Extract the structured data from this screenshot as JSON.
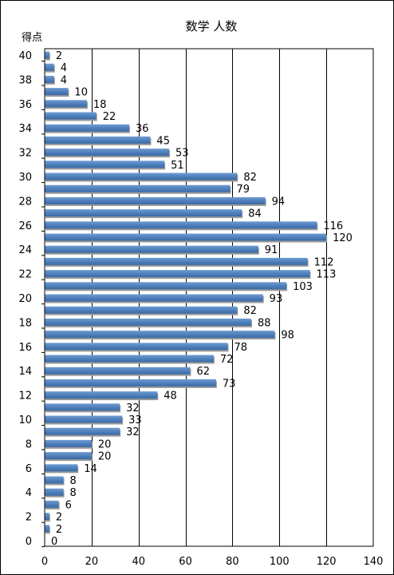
{
  "chart_data": {
    "type": "bar",
    "orientation": "horizontal",
    "title": "数学 人数",
    "ylabel": "得点",
    "xlabel": "",
    "xlim": [
      0,
      140
    ],
    "x_ticks": [
      0,
      20,
      40,
      60,
      80,
      100,
      120,
      140
    ],
    "y_ticks": [
      0,
      2,
      4,
      6,
      8,
      10,
      12,
      14,
      16,
      18,
      20,
      22,
      24,
      26,
      28,
      30,
      32,
      34,
      36,
      38,
      40
    ],
    "grid": "vertical",
    "bar_color": "#4f81bd",
    "categories": [
      40,
      39,
      38,
      37,
      36,
      35,
      34,
      33,
      32,
      31,
      30,
      29,
      28,
      27,
      26,
      25,
      24,
      23,
      22,
      21,
      20,
      19,
      18,
      17,
      16,
      15,
      14,
      13,
      12,
      11,
      10,
      9,
      8,
      7,
      6,
      5,
      4,
      3,
      2,
      1,
      0
    ],
    "values": [
      2,
      4,
      4,
      10,
      18,
      22,
      36,
      45,
      53,
      51,
      82,
      79,
      94,
      84,
      116,
      120,
      91,
      112,
      113,
      103,
      93,
      82,
      88,
      98,
      78,
      72,
      62,
      73,
      48,
      32,
      33,
      32,
      20,
      20,
      14,
      8,
      8,
      6,
      2,
      2,
      0
    ]
  }
}
